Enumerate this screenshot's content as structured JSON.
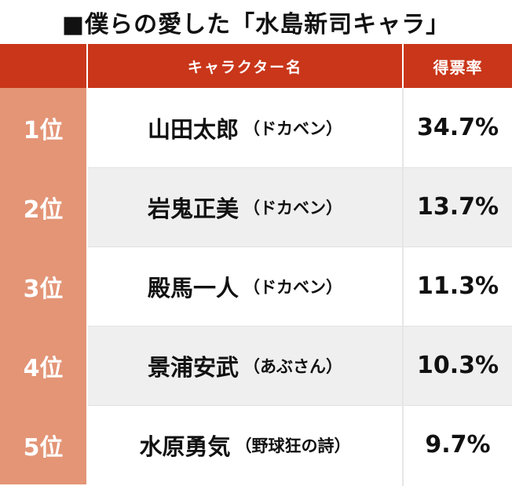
{
  "title": "■僕らの愛した「水島新司キャラ」",
  "table": {
    "header": {
      "name_label": "キャラクター名",
      "rate_label": "得票率"
    },
    "rows": [
      {
        "rank": "1位",
        "name": "山田太郎",
        "work": "（ドカベン）",
        "rate": "34.7%"
      },
      {
        "rank": "2位",
        "name": "岩鬼正美",
        "work": "（ドカベン）",
        "rate": "13.7%"
      },
      {
        "rank": "3位",
        "name": "殿馬一人",
        "work": "（ドカベン）",
        "rate": "11.3%"
      },
      {
        "rank": "4位",
        "name": "景浦安武",
        "work": "（あぶさん）",
        "rate": "10.3%"
      },
      {
        "rank": "5位",
        "name": "水原勇気",
        "work": "（野球狂の詩）",
        "rate": "9.7%"
      }
    ]
  },
  "colors": {
    "header_bg": "#c9361a",
    "rank_bg": "#e39576",
    "alt_row_bg": "#efefef"
  }
}
